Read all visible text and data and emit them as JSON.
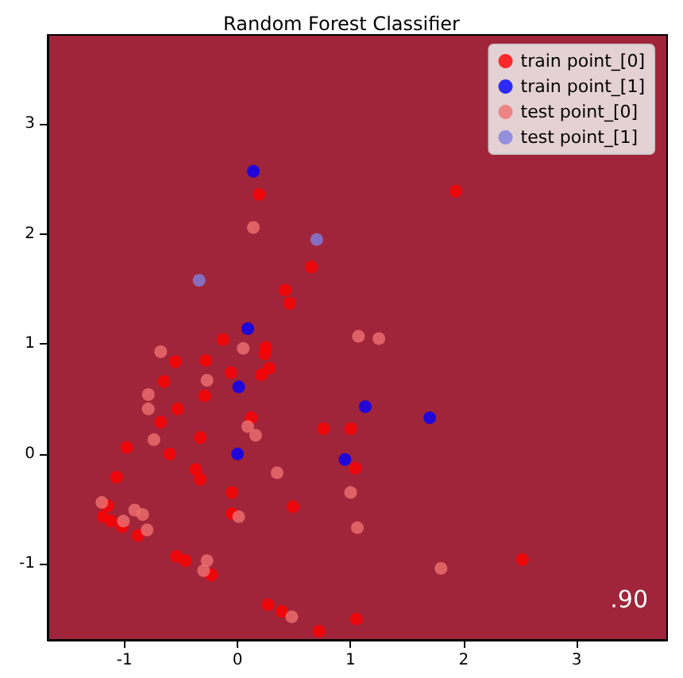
{
  "chart_data": {
    "type": "scatter",
    "title": "Random Forest Classifier",
    "marker": "circle",
    "grid": false,
    "legend": "top right",
    "xlim": [
      -1.68,
      3.8
    ],
    "ylim": [
      -1.69,
      3.81
    ],
    "xticks": [
      -1,
      0,
      1,
      2,
      3
    ],
    "yticks": [
      -1,
      0,
      1,
      2,
      3
    ],
    "annotations": [
      ".90"
    ],
    "series": [
      {
        "name": "train point_[0]",
        "color": "#ff0000",
        "x": [
          0.19,
          0.65,
          0.42,
          0.46,
          -0.13,
          0.25,
          1.93,
          0.24,
          -0.55,
          -0.28,
          -0.65,
          -0.06,
          0.21,
          0.28,
          -0.29,
          -0.53,
          -0.68,
          0.12,
          -0.98,
          -0.6,
          -0.33,
          -1.07,
          -0.37,
          -0.33,
          -0.05,
          0.76,
          1.0,
          1.04,
          0.49,
          -0.05,
          -1.19,
          -1.15,
          -1.12,
          -1.02,
          -0.88,
          -0.54,
          -0.46,
          -0.23,
          0.27,
          0.39,
          0.72,
          1.05,
          2.52
        ],
        "values": [
          2.36,
          1.7,
          1.49,
          1.37,
          1.04,
          0.97,
          2.39,
          0.91,
          0.84,
          0.85,
          0.66,
          0.74,
          0.72,
          0.78,
          0.53,
          0.41,
          0.29,
          0.33,
          0.06,
          0.0,
          0.15,
          -0.21,
          -0.14,
          -0.23,
          -0.35,
          0.23,
          0.23,
          -0.13,
          -0.48,
          -0.54,
          -0.57,
          -0.47,
          -0.61,
          -0.66,
          -0.74,
          -0.93,
          -0.97,
          -1.1,
          -1.37,
          -1.43,
          -1.61,
          -1.5,
          -0.96
        ]
      },
      {
        "name": "train point_[1]",
        "color": "#0000ff",
        "x": [
          0.14,
          0.09,
          0.01,
          0.0,
          1.13,
          1.7,
          0.95
        ],
        "values": [
          2.57,
          1.14,
          0.61,
          0.0,
          0.43,
          0.33,
          -0.05
        ]
      },
      {
        "name": "test point_[0]",
        "color": "#f07070",
        "x": [
          0.14,
          1.07,
          1.25,
          -0.68,
          -0.27,
          -0.79,
          -0.79,
          -0.74,
          0.05,
          0.09,
          0.16,
          0.35,
          0.01,
          -0.91,
          -0.84,
          -0.8,
          -1.01,
          -1.2,
          -0.27,
          -0.3,
          0.48,
          1.0,
          1.06,
          1.8
        ],
        "values": [
          2.06,
          1.07,
          1.05,
          0.93,
          0.67,
          0.54,
          0.41,
          0.13,
          0.96,
          0.25,
          0.17,
          -0.17,
          -0.57,
          -0.51,
          -0.55,
          -0.69,
          -0.61,
          -0.44,
          -0.97,
          -1.06,
          -1.48,
          -0.35,
          -0.67,
          -1.04
        ]
      },
      {
        "name": "test point_[1]",
        "color": "#7f7fe0",
        "x": [
          0.7,
          -0.34
        ],
        "values": [
          1.95,
          1.58
        ]
      }
    ]
  }
}
